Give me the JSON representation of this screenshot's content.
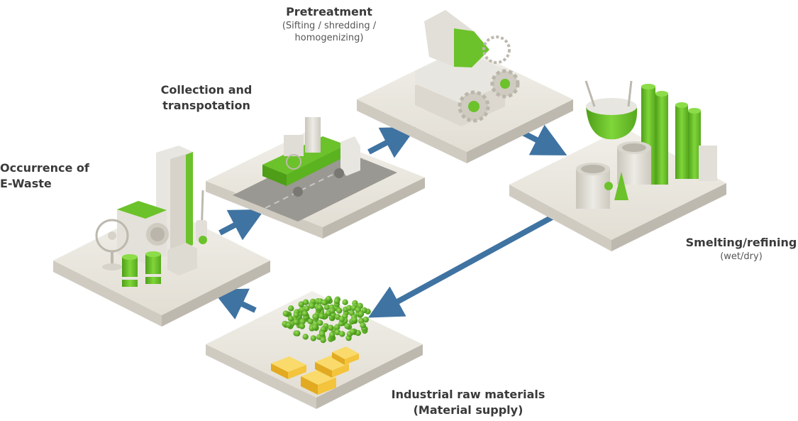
{
  "stages": {
    "occurrence": {
      "title_line1": "Occurrence of",
      "title_line2": "E-Waste"
    },
    "collection": {
      "title_line1": "Collection and",
      "title_line2": "transpotation"
    },
    "pretreatment": {
      "title": "Pretreatment",
      "sub_line1": "(Sifting / shredding /",
      "sub_line2": "homogenizing)"
    },
    "smelting": {
      "title": "Smelting/refining",
      "sub": "(wet/dry)"
    },
    "industrial": {
      "title_line1": "Industrial raw materials",
      "title_line2": "(Material supply)"
    }
  },
  "colors": {
    "platform_top": "#e9e6de",
    "platform_side": "#cfcbc1",
    "accent_green": "#6cc22a",
    "arrow_blue": "#3f73a2",
    "gold": "#f3c43c"
  }
}
